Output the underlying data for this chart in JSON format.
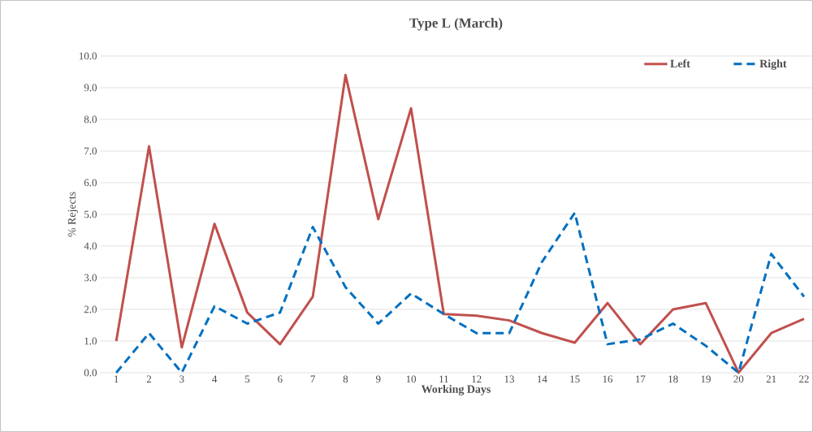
{
  "chart_data": {
    "type": "line",
    "title": "Type L (March)",
    "xlabel": "Working Days",
    "ylabel": "% Rejects",
    "categories": [
      "1",
      "2",
      "3",
      "4",
      "5",
      "6",
      "7",
      "8",
      "9",
      "10",
      "11",
      "12",
      "13",
      "14",
      "15",
      "16",
      "17",
      "18",
      "19",
      "20",
      "21",
      "22"
    ],
    "series": [
      {
        "name": "Left",
        "color": "#c0504d",
        "line_style": "solid",
        "values": [
          1.0,
          7.15,
          0.8,
          4.7,
          1.9,
          0.9,
          2.4,
          9.4,
          4.85,
          8.35,
          1.85,
          1.8,
          1.65,
          1.25,
          0.95,
          2.2,
          0.9,
          2.0,
          2.2,
          0.0,
          1.25,
          1.7
        ]
      },
      {
        "name": "Right",
        "color": "#0070c0",
        "line_style": "dashed",
        "values": [
          0.0,
          1.25,
          0.0,
          2.1,
          1.55,
          1.9,
          4.6,
          2.7,
          1.55,
          2.5,
          1.85,
          1.25,
          1.25,
          3.5,
          5.05,
          0.9,
          1.05,
          1.55,
          0.85,
          0.0,
          3.75,
          2.4
        ]
      }
    ],
    "ylim": [
      0,
      10
    ],
    "yticks": [
      {
        "value": 0,
        "label": "0.0"
      },
      {
        "value": 1,
        "label": "1.0"
      },
      {
        "value": 2,
        "label": "2.0"
      },
      {
        "value": 3,
        "label": "3.0"
      },
      {
        "value": 4,
        "label": "4.0"
      },
      {
        "value": 5,
        "label": "5.0"
      },
      {
        "value": 6,
        "label": "6.0"
      },
      {
        "value": 7,
        "label": "7.0"
      },
      {
        "value": 8,
        "label": "8.0"
      },
      {
        "value": 9,
        "label": "9.0"
      },
      {
        "value": 10,
        "label": "10.0"
      }
    ],
    "grid": "y",
    "legend": "top right",
    "marker": "none"
  }
}
